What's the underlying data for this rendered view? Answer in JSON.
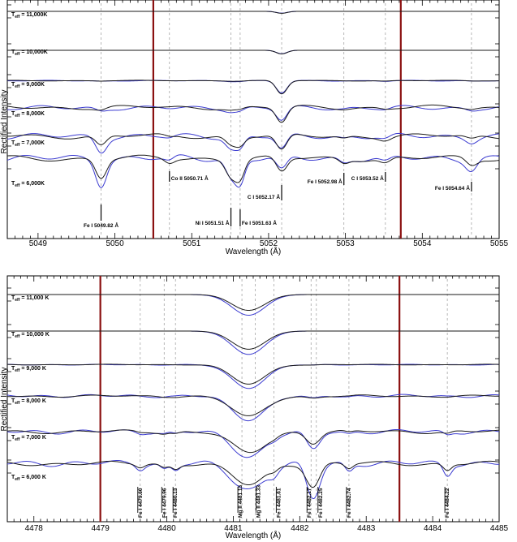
{
  "chart_data": [
    {
      "type": "line",
      "xlabel": "Wavelength (Å)",
      "ylabel": "Rectified Intensity",
      "xlim": [
        5048.6,
        5055.0
      ],
      "x_ticks": [
        5049,
        5050,
        5051,
        5052,
        5053,
        5054,
        5055
      ],
      "red_markers": [
        5050.5,
        5053.72
      ],
      "series": [
        {
          "name": "Teff = 11,000K",
          "label_main": "T",
          "label_sub": "eff",
          "label_rest": " = 11,000K"
        },
        {
          "name": "Teff = 10,000K",
          "label_main": "T",
          "label_sub": "eff",
          "label_rest": " = 10,000K"
        },
        {
          "name": "Teff = 9,000K",
          "label_main": "T",
          "label_sub": "eff",
          "label_rest": " = 9,000K"
        },
        {
          "name": "Teff = 8,000K",
          "label_main": "T",
          "label_sub": "eff",
          "label_rest": " = 8,000K"
        },
        {
          "name": "Teff = 7,000K",
          "label_main": "T",
          "label_sub": "eff",
          "label_rest": " = 7,000K"
        },
        {
          "name": "Teff = 6,000K",
          "label_main": "T",
          "label_sub": "eff",
          "label_rest": " = 6,000K"
        }
      ],
      "lines": [
        {
          "label": "Fe I 5049.82 Å",
          "wl": 5049.82
        },
        {
          "label": "Co II 5050.71 Å",
          "wl": 5050.71
        },
        {
          "label": "Ni I 5051.51 Å",
          "wl": 5051.51
        },
        {
          "label": "Fe I 5051.63 Å",
          "wl": 5051.63
        },
        {
          "label": "C I 5052.17 Å",
          "wl": 5052.17
        },
        {
          "label": "Fe I 5052.98 Å",
          "wl": 5052.98
        },
        {
          "label": "C I 5053.52 Å",
          "wl": 5053.52
        },
        {
          "label": "Fe I 5054.64 Å",
          "wl": 5054.64
        }
      ]
    },
    {
      "type": "line",
      "xlabel": "Wavelength (Å)",
      "ylabel": "Rectified Intensity",
      "xlim": [
        4477.6,
        4485.0
      ],
      "x_ticks": [
        4478,
        4479,
        4480,
        4481,
        4482,
        4483,
        4484,
        4485
      ],
      "red_markers": [
        4479.0,
        4483.5
      ],
      "series": [
        {
          "name": "Teff = 11,000 K",
          "label_main": "T",
          "label_sub": "eff",
          "label_rest": " = 11,000 K"
        },
        {
          "name": "Teff = 10,000 K",
          "label_main": "T",
          "label_sub": "eff",
          "label_rest": " = 10,000 K"
        },
        {
          "name": "Teff = 9,000 K",
          "label_main": "T",
          "label_sub": "eff",
          "label_rest": " = 9,000 K"
        },
        {
          "name": "Teff = 8,000 K",
          "label_main": "T",
          "label_sub": "eff",
          "label_rest": " = 8,000 K"
        },
        {
          "name": "Teff = 7,000 K",
          "label_main": "T",
          "label_sub": "eff",
          "label_rest": " = 7,000 K"
        },
        {
          "name": "Teff = 6,000 K",
          "label_main": "T",
          "label_sub": "eff",
          "label_rest": " = 6,000 K"
        }
      ],
      "lines": [
        {
          "label": "Fe I 4479.60",
          "wl": 4479.6
        },
        {
          "label": "Fe I 4479.96",
          "wl": 4479.96
        },
        {
          "label": "Fe I 4480.13",
          "wl": 4480.13
        },
        {
          "label": "Mg II 4481.13",
          "wl": 4481.13
        },
        {
          "label": "Mg II 4481.33",
          "wl": 4481.33
        },
        {
          "label": "Fe I 4481.61",
          "wl": 4481.61
        },
        {
          "label": "Fe I 4482.17",
          "wl": 4482.17
        },
        {
          "label": "Fe I 4482.25",
          "wl": 4482.25
        },
        {
          "label": "Fe I 4482.74",
          "wl": 4482.74
        },
        {
          "label": "Fe I 4484.22",
          "wl": 4484.22
        }
      ]
    }
  ],
  "colors": {
    "model": "#1a1a1a",
    "observed": "#3a3ad0",
    "marker": "#8b1010",
    "lineid": "#9a9a9a"
  }
}
